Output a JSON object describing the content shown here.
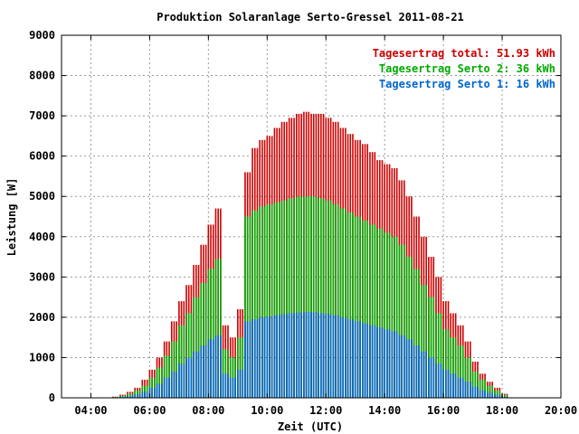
{
  "chart_data": {
    "type": "bar",
    "title": "Produktion Solaranlage Serto-Gressel 2011-08-21",
    "xlabel": "Zeit (UTC)",
    "ylabel": "Leistung [W]",
    "xlim": [
      "03:00",
      "20:00"
    ],
    "ylim": [
      0,
      9000
    ],
    "xticks": [
      "04:00",
      "06:00",
      "08:00",
      "10:00",
      "12:00",
      "14:00",
      "16:00",
      "18:00",
      "20:00"
    ],
    "yticks": [
      "0",
      "1000",
      "2000",
      "3000",
      "4000",
      "5000",
      "6000",
      "7000",
      "8000",
      "9000"
    ],
    "grid": true,
    "legend_position": "top-right",
    "stacking": "overlaid",
    "colors": {
      "total": "#cc0000",
      "serto2": "#00aa00",
      "serto1": "#0066cc"
    },
    "legend": [
      {
        "key": "total",
        "label": "Tagesertrag total: 51.93 kWh",
        "color": "#cc0000"
      },
      {
        "key": "serto2",
        "label": "Tagesertrag Serto 2: 36 kWh",
        "color": "#00aa00"
      },
      {
        "key": "serto1",
        "label": "Tagesertrag Serto 1: 16 kWh",
        "color": "#0066cc"
      }
    ],
    "x": [
      "04:45",
      "05:00",
      "05:15",
      "05:30",
      "05:45",
      "06:00",
      "06:15",
      "06:30",
      "06:45",
      "07:00",
      "07:15",
      "07:30",
      "07:45",
      "08:00",
      "08:15",
      "08:30",
      "08:45",
      "09:00",
      "09:15",
      "09:30",
      "09:45",
      "10:00",
      "10:15",
      "10:30",
      "10:45",
      "11:00",
      "11:15",
      "11:30",
      "11:45",
      "12:00",
      "12:15",
      "12:30",
      "12:45",
      "13:00",
      "13:15",
      "13:30",
      "13:45",
      "14:00",
      "14:15",
      "14:30",
      "14:45",
      "15:00",
      "15:15",
      "15:30",
      "15:45",
      "16:00",
      "16:15",
      "16:30",
      "16:45",
      "17:00",
      "17:15",
      "17:30",
      "17:45",
      "18:00"
    ],
    "series": [
      {
        "name": "total",
        "values": [
          30,
          80,
          150,
          250,
          450,
          700,
          1000,
          1400,
          1900,
          2400,
          2800,
          3300,
          3800,
          4300,
          4700,
          1800,
          1500,
          2200,
          5600,
          6200,
          6400,
          6500,
          6700,
          6850,
          6950,
          7050,
          7100,
          7050,
          7050,
          6950,
          6850,
          6700,
          6550,
          6400,
          6300,
          6100,
          5900,
          5800,
          5700,
          5400,
          5000,
          4500,
          4000,
          3500,
          3000,
          2400,
          2100,
          1800,
          1400,
          900,
          600,
          400,
          250,
          100
        ]
      },
      {
        "name": "Serto 2",
        "values": [
          20,
          50,
          100,
          180,
          300,
          500,
          750,
          1050,
          1400,
          1800,
          2100,
          2500,
          2850,
          3200,
          3450,
          1200,
          1000,
          1500,
          4500,
          4650,
          4750,
          4800,
          4850,
          4900,
          4950,
          5000,
          5000,
          5000,
          4950,
          4900,
          4800,
          4700,
          4600,
          4500,
          4400,
          4300,
          4200,
          4100,
          4000,
          3800,
          3500,
          3200,
          2800,
          2500,
          2100,
          1700,
          1500,
          1300,
          1000,
          650,
          450,
          300,
          180,
          70
        ]
      },
      {
        "name": "Serto 1",
        "values": [
          10,
          30,
          50,
          90,
          150,
          250,
          350,
          500,
          650,
          850,
          1000,
          1150,
          1300,
          1450,
          1550,
          600,
          500,
          700,
          1900,
          1950,
          2000,
          2020,
          2050,
          2080,
          2100,
          2120,
          2130,
          2130,
          2100,
          2080,
          2050,
          2000,
          1950,
          1900,
          1850,
          1800,
          1750,
          1700,
          1650,
          1550,
          1450,
          1300,
          1150,
          1000,
          850,
          700,
          600,
          500,
          400,
          280,
          190,
          130,
          80,
          30
        ]
      }
    ]
  }
}
